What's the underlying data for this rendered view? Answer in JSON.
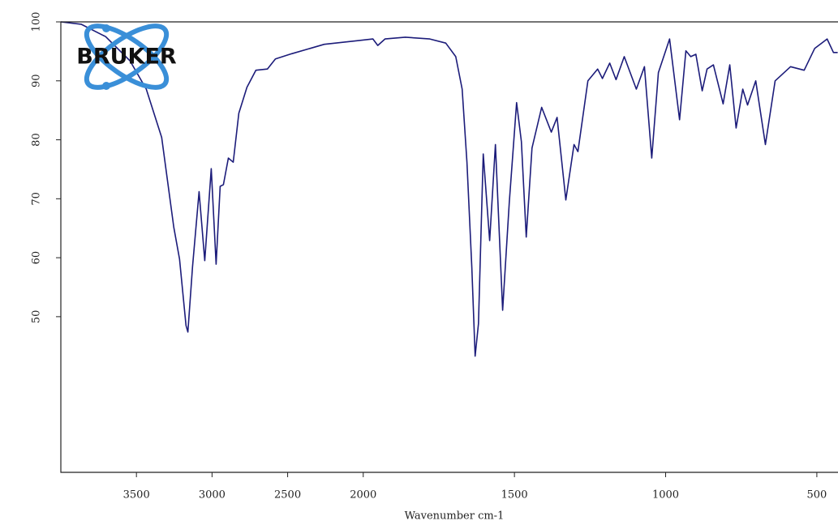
{
  "chart_data": {
    "type": "line",
    "logo": "BRUKER",
    "x_label": "Wavenumber cm-1",
    "xlim": [
      4000,
      430
    ],
    "xbreak": 2000,
    "xticks": [
      3500,
      3000,
      2500,
      2000,
      1500,
      1000,
      500
    ],
    "ylim": [
      23.6,
      100
    ],
    "yticks": [
      50,
      60,
      70,
      80,
      90,
      100
    ],
    "series": [
      {
        "color": "#1c1c7a",
        "x": [
          4000,
          3866,
          3704,
          3543,
          3435,
          3333,
          3253,
          3215,
          3172,
          3160,
          3129,
          3086,
          3048,
          3005,
          2973,
          2946,
          2925,
          2892,
          2860,
          2823,
          2769,
          2710,
          2634,
          2581,
          2473,
          2258,
          2043,
          1968,
          1952,
          1928,
          1861,
          1780,
          1727,
          1694,
          1673,
          1657,
          1641,
          1630,
          1619,
          1603,
          1582,
          1563,
          1539,
          1517,
          1493,
          1477,
          1461,
          1442,
          1410,
          1378,
          1359,
          1330,
          1303,
          1290,
          1257,
          1225,
          1209,
          1185,
          1164,
          1137,
          1097,
          1070,
          1046,
          1024,
          987,
          954,
          933,
          917,
          900,
          879,
          863,
          842,
          810,
          788,
          767,
          745,
          729,
          702,
          670,
          638,
          587,
          542,
          507,
          466,
          445,
          431
        ],
        "values": [
          100,
          99.6,
          97.5,
          93.4,
          88.6,
          80.4,
          65.2,
          59.8,
          48.5,
          47.4,
          58.4,
          71.2,
          59.5,
          75.1,
          58.9,
          72.1,
          72.4,
          76.9,
          76.2,
          84.5,
          88.9,
          91.8,
          92,
          93.7,
          94.6,
          96.2,
          96.8,
          97.1,
          96,
          97.1,
          97.4,
          97.1,
          96.4,
          94.1,
          88.6,
          76.2,
          58.4,
          43.3,
          48.8,
          77.6,
          62.9,
          79.2,
          51.1,
          69.4,
          86.3,
          79.7,
          63.5,
          78.6,
          85.5,
          81.3,
          83.8,
          69.8,
          79.2,
          78,
          90,
          92,
          90.4,
          93,
          90.2,
          94.1,
          88.6,
          92.4,
          76.9,
          91.4,
          97.1,
          83.4,
          95.1,
          94.1,
          94.5,
          88.3,
          92,
          92.7,
          86.1,
          92.7,
          82,
          88.6,
          85.9,
          90,
          79.2,
          90,
          92.4,
          91.8,
          95.5,
          97.1,
          94.8,
          94.8
        ]
      }
    ]
  }
}
